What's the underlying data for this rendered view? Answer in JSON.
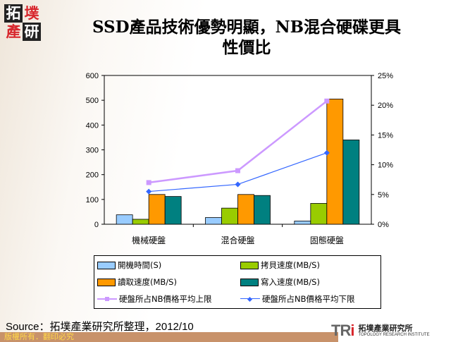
{
  "logo": {
    "chars": [
      "拓",
      "墣",
      "產",
      "研"
    ]
  },
  "title": {
    "line1": "SSD產品技術優勢明顯，NB混合硬碟更具",
    "line2": "性價比"
  },
  "chart_data": {
    "type": "bar",
    "categories": [
      "機械硬盤",
      "混合硬盤",
      "固態硬盤"
    ],
    "y_left": {
      "range": [
        0,
        600
      ],
      "ticks": [
        "0",
        "100",
        "200",
        "300",
        "400",
        "500",
        "600"
      ]
    },
    "y_right": {
      "range": [
        0,
        25
      ],
      "ticks": [
        "0%",
        "5%",
        "10%",
        "15%",
        "20%",
        "25%"
      ],
      "unit": "%"
    },
    "grid": false,
    "legend_placement": "bottom",
    "series": [
      {
        "name": "開機時間(S)",
        "type": "bar",
        "axis": "left",
        "color": "#99ccff",
        "values": [
          38,
          27,
          13
        ]
      },
      {
        "name": "拷貝速度(MB/S)",
        "type": "bar",
        "axis": "left",
        "color": "#99cc00",
        "values": [
          20,
          65,
          84
        ]
      },
      {
        "name": "讀取速度(MB/S)",
        "type": "bar",
        "axis": "left",
        "color": "#ff9900",
        "values": [
          120,
          120,
          505
        ]
      },
      {
        "name": "寫入速度(MB/S)",
        "type": "bar",
        "axis": "left",
        "color": "#008080",
        "values": [
          112,
          116,
          340
        ]
      },
      {
        "name": "硬盤所占NB價格平均上限",
        "type": "line",
        "axis": "right",
        "color": "#cc99ff",
        "marker": "square",
        "values": [
          7.0,
          9.0,
          20.7
        ]
      },
      {
        "name": "硬盤所占NB價格平均下限",
        "type": "line",
        "axis": "right",
        "color": "#3366ff",
        "marker": "diamond",
        "values": [
          5.5,
          6.7,
          12.0
        ]
      }
    ]
  },
  "source": "Source：拓墣產業研究所整理，2012/10",
  "footer": {
    "copyright": "版權所有．翻印必究",
    "brand_cn": "拓墣產業研究所",
    "brand_en": "TOPOLOGY RESEARCH INSTITUTE",
    "brand_mark": "TRi"
  }
}
